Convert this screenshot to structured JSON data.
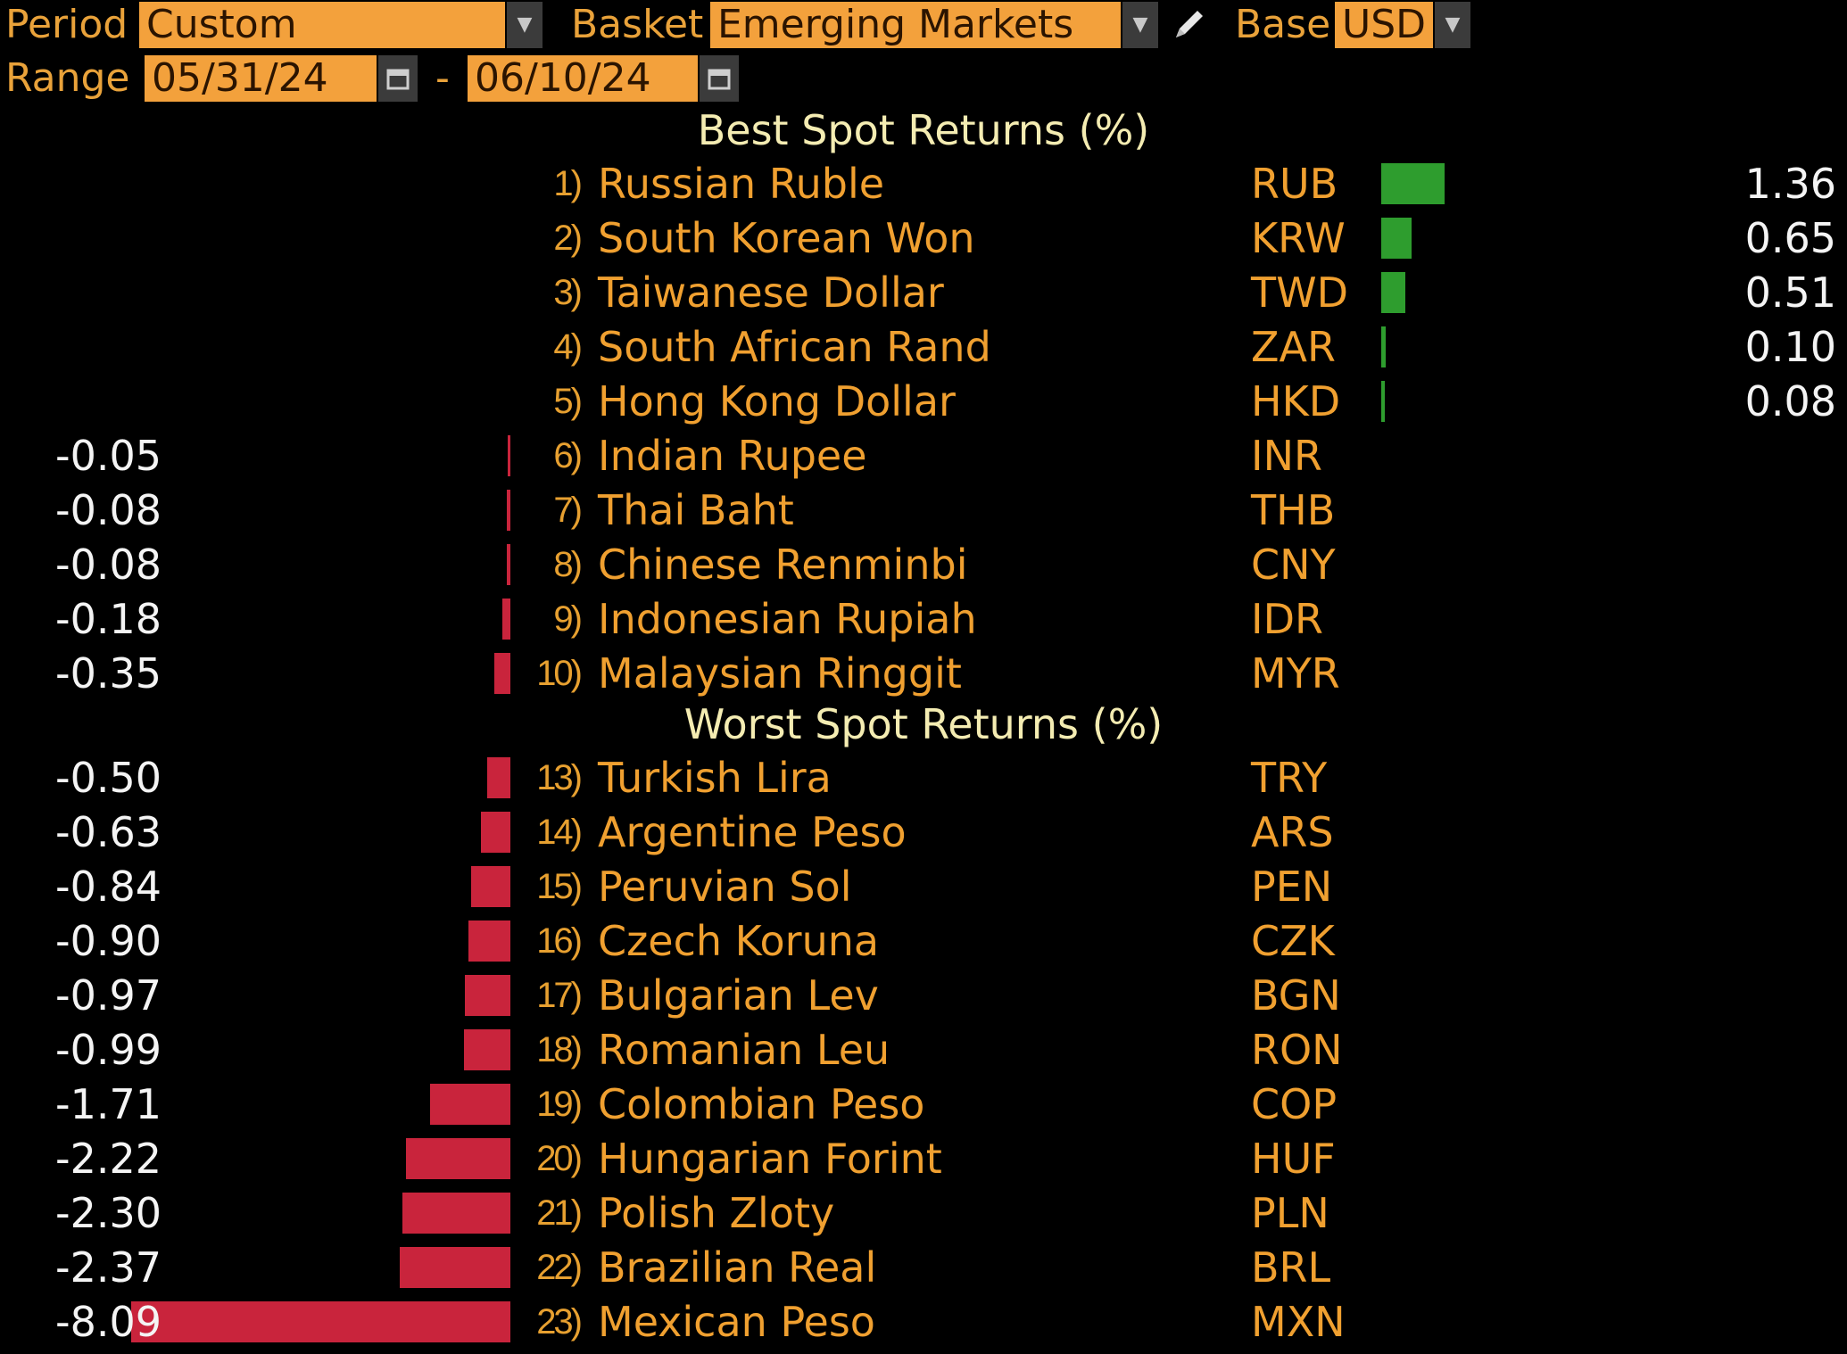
{
  "header": {
    "period_label": "Period",
    "period_value": "Custom",
    "basket_label": "Basket",
    "basket_value": "Emerging Markets",
    "base_label": "Base",
    "base_value": "USD",
    "range_label": "Range",
    "range_start": "05/31/24",
    "range_sep": "-",
    "range_end": "06/10/24"
  },
  "best_title": "Best Spot Returns (%)",
  "worst_title": "Worst Spot Returns (%)",
  "best": [
    {
      "rank": "1)",
      "name": "Russian Ruble",
      "code": "RUB",
      "value": "1.36"
    },
    {
      "rank": "2)",
      "name": "South Korean Won",
      "code": "KRW",
      "value": "0.65"
    },
    {
      "rank": "3)",
      "name": "Taiwanese Dollar",
      "code": "TWD",
      "value": "0.51"
    },
    {
      "rank": "4)",
      "name": "South African Rand",
      "code": "ZAR",
      "value": "0.10"
    },
    {
      "rank": "5)",
      "name": "Hong Kong Dollar",
      "code": "HKD",
      "value": "0.08"
    },
    {
      "rank": "6)",
      "name": "Indian Rupee",
      "code": "INR",
      "value": "-0.05"
    },
    {
      "rank": "7)",
      "name": "Thai Baht",
      "code": "THB",
      "value": "-0.08"
    },
    {
      "rank": "8)",
      "name": "Chinese Renminbi",
      "code": "CNY",
      "value": "-0.08"
    },
    {
      "rank": "9)",
      "name": "Indonesian Rupiah",
      "code": "IDR",
      "value": "-0.18"
    },
    {
      "rank": "10)",
      "name": "Malaysian Ringgit",
      "code": "MYR",
      "value": "-0.35"
    }
  ],
  "worst": [
    {
      "rank": "13)",
      "name": "Turkish Lira",
      "code": "TRY",
      "value": "-0.50"
    },
    {
      "rank": "14)",
      "name": "Argentine Peso",
      "code": "ARS",
      "value": "-0.63"
    },
    {
      "rank": "15)",
      "name": "Peruvian Sol",
      "code": "PEN",
      "value": "-0.84"
    },
    {
      "rank": "16)",
      "name": "Czech Koruna",
      "code": "CZK",
      "value": "-0.90"
    },
    {
      "rank": "17)",
      "name": "Bulgarian Lev",
      "code": "BGN",
      "value": "-0.97"
    },
    {
      "rank": "18)",
      "name": "Romanian Leu",
      "code": "RON",
      "value": "-0.99"
    },
    {
      "rank": "19)",
      "name": "Colombian Peso",
      "code": "COP",
      "value": "-1.71"
    },
    {
      "rank": "20)",
      "name": "Hungarian Forint",
      "code": "HUF",
      "value": "-2.22"
    },
    {
      "rank": "21)",
      "name": "Polish Zloty",
      "code": "PLN",
      "value": "-2.30"
    },
    {
      "rank": "22)",
      "name": "Brazilian Real",
      "code": "BRL",
      "value": "-2.37"
    },
    {
      "rank": "23)",
      "name": "Mexican Peso",
      "code": "MXN",
      "value": "-8.09"
    }
  ],
  "colors": {
    "positive_bar": "#2e9d2e",
    "negative_bar": "#c9243c",
    "label_orange": "#f0a030",
    "title_cream": "#f4ecb2"
  },
  "icons": [
    "dropdown-arrow-icon",
    "pencil-icon",
    "calendar-icon"
  ]
}
